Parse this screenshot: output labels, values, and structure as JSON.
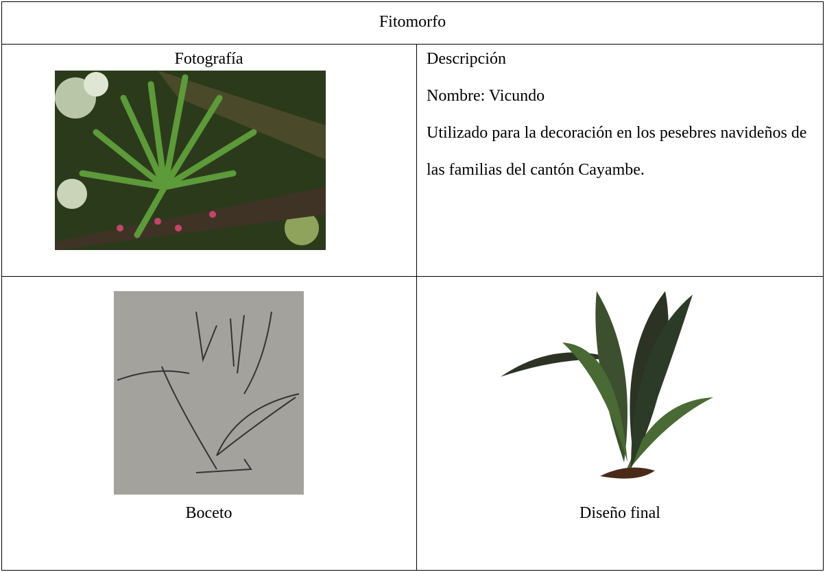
{
  "header": {
    "title": "Fitomorfo"
  },
  "photo": {
    "caption": "Fotografía"
  },
  "description": {
    "heading": "Descripción",
    "name": "Nombre: Vicundo",
    "text": "Utilizado para la decoración en los pesebres navideños de las familias del cantón Cayambe."
  },
  "sketch": {
    "caption": "Boceto"
  },
  "final_design": {
    "caption": "Diseño final"
  }
}
